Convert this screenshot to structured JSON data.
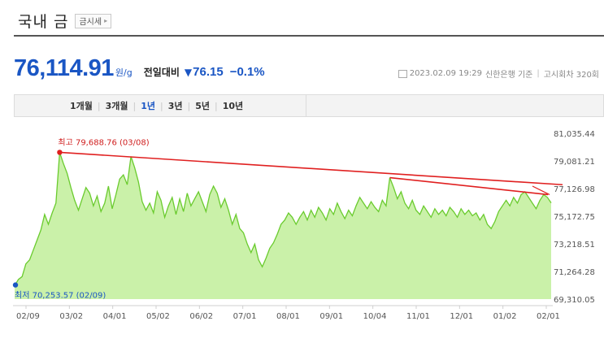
{
  "header": {
    "title": "국내 금",
    "sise_button": "금시세"
  },
  "price": {
    "value": "76,114.91",
    "unit": "원/g",
    "change_label": "전일대비",
    "change_arrow": "▼",
    "change_value": "76.15",
    "change_percent": "−0.1%",
    "meta_date": "2023.02.09 19:29",
    "meta_source": "신한은행 기준",
    "meta_count": "고시회차 320회"
  },
  "periods": [
    "1개월",
    "3개월",
    "1년",
    "3년",
    "5년",
    "10년"
  ],
  "active_period": "1년",
  "colors": {
    "accent": "#1a56c4",
    "fill": "#b8ec8c",
    "line": "#6acb2e",
    "trend": "#e02020"
  },
  "chart_data": {
    "type": "area",
    "yticks": [
      "81,035.44",
      "79,081.21",
      "77,126.98",
      "75,172.75",
      "73,218.51",
      "71,264.28",
      "69,310.05"
    ],
    "ylim": [
      69310.05,
      81035.44
    ],
    "xticks": [
      "02/09",
      "03/02",
      "04/01",
      "05/02",
      "06/02",
      "07/01",
      "08/01",
      "09/01",
      "10/04",
      "11/01",
      "12/01",
      "01/02",
      "02/01"
    ],
    "high_label": "최고 79,688.76 (03/08)",
    "low_label": "최저 70,253.57 (02/09)",
    "high": 79688.76,
    "low": 70253.57,
    "values": [
      70253.57,
      70700,
      70900,
      71800,
      72100,
      72800,
      73500,
      74200,
      75300,
      74600,
      75400,
      76100,
      79688.76,
      78900,
      78200,
      77200,
      76300,
      75600,
      76400,
      77200,
      76800,
      75900,
      76600,
      75500,
      76100,
      77300,
      75700,
      76700,
      77800,
      78100,
      77400,
      79400,
      78600,
      77600,
      76200,
      75600,
      76100,
      75400,
      76900,
      76300,
      75100,
      75900,
      76500,
      75300,
      76400,
      75500,
      76800,
      75900,
      76400,
      76900,
      76200,
      75500,
      76700,
      77300,
      76800,
      75800,
      76400,
      75600,
      74600,
      75300,
      74300,
      74000,
      73200,
      72600,
      73200,
      72100,
      71600,
      72200,
      72900,
      73300,
      73900,
      74600,
      74900,
      75400,
      75100,
      74600,
      75100,
      75500,
      74900,
      75600,
      75100,
      75800,
      75400,
      74900,
      75700,
      75300,
      76100,
      75500,
      75000,
      75600,
      75200,
      75900,
      76500,
      76100,
      75700,
      76200,
      75800,
      75500,
      76300,
      75900,
      77900,
      77200,
      76400,
      76900,
      76100,
      75700,
      76300,
      75600,
      75300,
      75900,
      75500,
      75100,
      75700,
      75300,
      75600,
      75200,
      75800,
      75500,
      75100,
      75700,
      75300,
      75600,
      75200,
      75400,
      74900,
      75300,
      74600,
      74300,
      74800,
      75500,
      75900,
      76300,
      75900,
      76500,
      76100,
      76700,
      76900,
      76500,
      76100,
      75700,
      76300,
      76700,
      76500,
      76114.91
    ],
    "trendlines": [
      {
        "from": [
          79688.76,
          "03/08"
        ],
        "to": [
          77400,
          "end"
        ]
      },
      {
        "from": [
          77900,
          "10/04"
        ],
        "to": [
          76700,
          "end"
        ]
      }
    ],
    "grid": false
  }
}
